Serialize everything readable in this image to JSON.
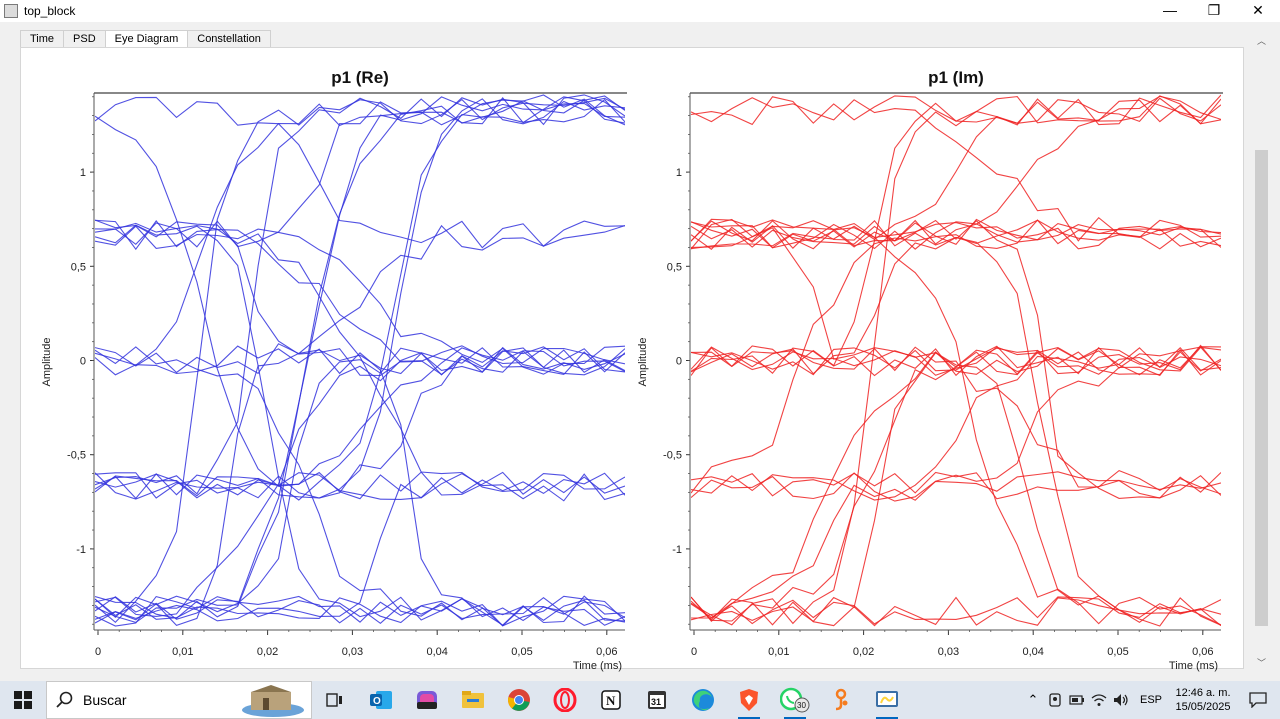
{
  "window": {
    "title": "top_block",
    "controls": {
      "minimize": "—",
      "restore": "❐",
      "close": "✕"
    }
  },
  "tabs": [
    {
      "label": "Time",
      "active": false
    },
    {
      "label": "PSD",
      "active": false
    },
    {
      "label": "Eye Diagram",
      "active": true
    },
    {
      "label": "Constellation",
      "active": false
    }
  ],
  "chart_data": [
    {
      "type": "line",
      "title": "p1 (Re)",
      "xlabel": "Time (ms)",
      "ylabel": "Amplitude",
      "xlim": [
        0,
        0.0625
      ],
      "ylim": [
        -1.42,
        1.42
      ],
      "x_ticks": [
        "0",
        "0,01",
        "0,02",
        "0,03",
        "0,04",
        "0,05",
        "0,06"
      ],
      "y_ticks": [
        "-1",
        "-0,5",
        "0",
        "0,5",
        "1"
      ],
      "color": "#3333dd",
      "eye_levels": [
        -1.33,
        -0.67,
        0,
        0.67,
        1.33
      ],
      "trace_count": 28
    },
    {
      "type": "line",
      "title": "p1 (Im)",
      "xlabel": "Time (ms)",
      "ylabel": "Amplitude",
      "xlim": [
        0,
        0.0625
      ],
      "ylim": [
        -1.42,
        1.42
      ],
      "x_ticks": [
        "0",
        "0,01",
        "0,02",
        "0,03",
        "0,04",
        "0,05",
        "0,06"
      ],
      "y_ticks": [
        "-1",
        "-0,5",
        "0",
        "0,5",
        "1"
      ],
      "color": "#ee2222",
      "eye_levels": [
        -1.33,
        -0.67,
        0,
        0.67,
        1.33
      ],
      "trace_count": 28
    }
  ],
  "taskbar": {
    "search_placeholder": "Buscar",
    "apps": [
      "task-view",
      "outlook",
      "m365",
      "file-explorer",
      "chrome",
      "opera",
      "notion",
      "calendar",
      "edge",
      "brave",
      "whatsapp",
      "git-app",
      "python"
    ],
    "whatsapp_badge": "30",
    "calendar_day": "31",
    "language": "ESP",
    "time": "12:46 a. m.",
    "date": "15/05/2025"
  }
}
